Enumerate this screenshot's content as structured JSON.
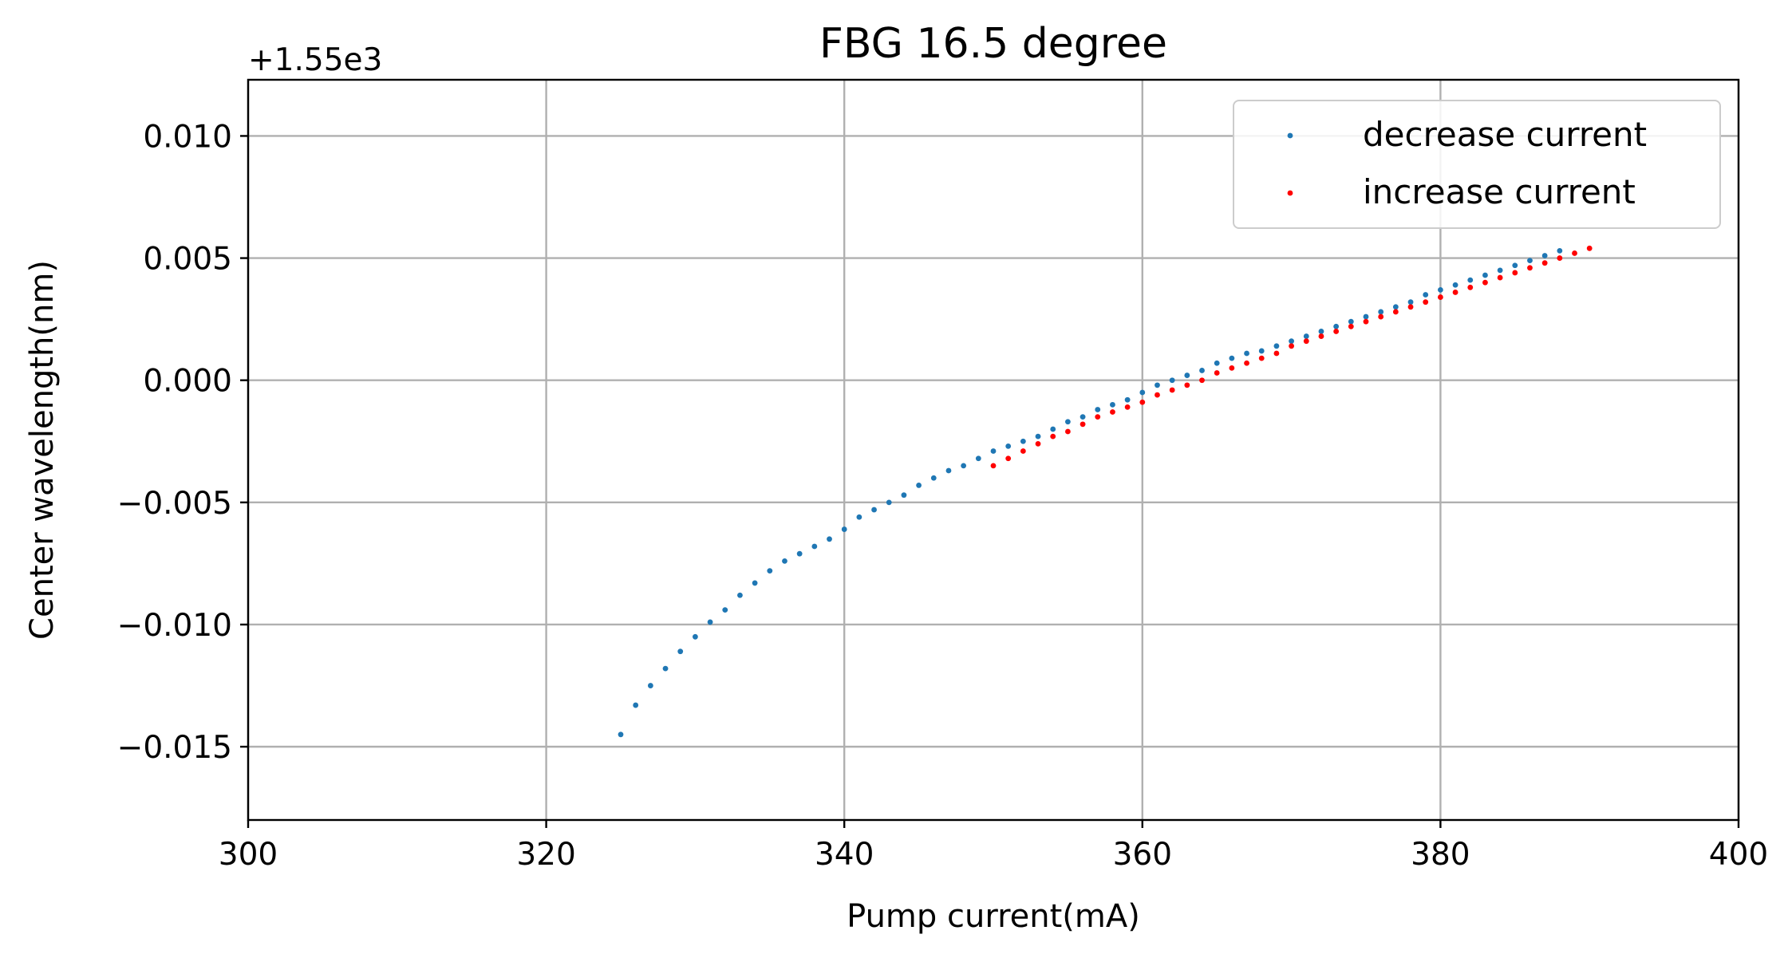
{
  "chart_data": {
    "type": "scatter",
    "title": "FBG 16.5 degree",
    "xlabel": "Pump current(mA)",
    "ylabel": "Center wavelength(nm)",
    "y_offset_label": "+1.55e3",
    "xlim": [
      300,
      400
    ],
    "ylim": [
      -0.018,
      0.0123
    ],
    "x_ticks": [
      300,
      320,
      340,
      360,
      380,
      400
    ],
    "x_tick_labels": [
      "300",
      "320",
      "340",
      "360",
      "380",
      "400"
    ],
    "y_ticks": [
      0.01,
      0.005,
      0.0,
      -0.005,
      -0.01,
      -0.015
    ],
    "y_tick_labels": [
      "0.010",
      "0.005",
      "0.000",
      "−0.005",
      "−0.010",
      "−0.015"
    ],
    "grid": true,
    "legend_position": "top-right",
    "series": [
      {
        "name": "decrease current",
        "color": "#1f77b4",
        "x": [
          325,
          326,
          327,
          328,
          329,
          330,
          331,
          332,
          333,
          334,
          335,
          336,
          337,
          338,
          339,
          340,
          341,
          342,
          343,
          344,
          345,
          346,
          347,
          348,
          349,
          350,
          351,
          352,
          353,
          354,
          355,
          356,
          357,
          358,
          359,
          360,
          361,
          362,
          363,
          364,
          365,
          366,
          367,
          368,
          369,
          370,
          371,
          372,
          373,
          374,
          375,
          376,
          377,
          378,
          379,
          380,
          381,
          382,
          383,
          384,
          385,
          386,
          387,
          388
        ],
        "y": [
          -0.0145,
          -0.0133,
          -0.0125,
          -0.0118,
          -0.0111,
          -0.0105,
          -0.0099,
          -0.0094,
          -0.0088,
          -0.0083,
          -0.0078,
          -0.0074,
          -0.0071,
          -0.0068,
          -0.0065,
          -0.0061,
          -0.0056,
          -0.0053,
          -0.005,
          -0.0047,
          -0.0043,
          -0.004,
          -0.0037,
          -0.0035,
          -0.0032,
          -0.0029,
          -0.0027,
          -0.0025,
          -0.0023,
          -0.002,
          -0.0017,
          -0.0015,
          -0.0012,
          -0.001,
          -0.0008,
          -0.0005,
          -0.0002,
          0.0,
          0.0002,
          0.0004,
          0.0007,
          0.0009,
          0.0011,
          0.0012,
          0.0014,
          0.0016,
          0.0018,
          0.002,
          0.0022,
          0.0024,
          0.0026,
          0.0028,
          0.003,
          0.0032,
          0.0035,
          0.0037,
          0.0039,
          0.0041,
          0.0043,
          0.0045,
          0.0047,
          0.0049,
          0.0051,
          0.0053
        ]
      },
      {
        "name": "increase current",
        "color": "#ff0000",
        "x": [
          350,
          351,
          352,
          353,
          354,
          355,
          356,
          357,
          358,
          359,
          360,
          361,
          362,
          363,
          364,
          365,
          366,
          367,
          368,
          369,
          370,
          371,
          372,
          373,
          374,
          375,
          376,
          377,
          378,
          379,
          380,
          381,
          382,
          383,
          384,
          385,
          386,
          387,
          388,
          389,
          390
        ],
        "y": [
          -0.0035,
          -0.0032,
          -0.0029,
          -0.0026,
          -0.0023,
          -0.0021,
          -0.0018,
          -0.0015,
          -0.0013,
          -0.0011,
          -0.0009,
          -0.0006,
          -0.0004,
          -0.0002,
          0.0,
          0.0003,
          0.0005,
          0.0007,
          0.0009,
          0.0011,
          0.0014,
          0.0016,
          0.0018,
          0.002,
          0.0022,
          0.0024,
          0.0026,
          0.0028,
          0.003,
          0.0032,
          0.0034,
          0.0036,
          0.0038,
          0.004,
          0.0042,
          0.0044,
          0.0046,
          0.0048,
          0.005,
          0.0052,
          0.0054
        ]
      }
    ]
  }
}
